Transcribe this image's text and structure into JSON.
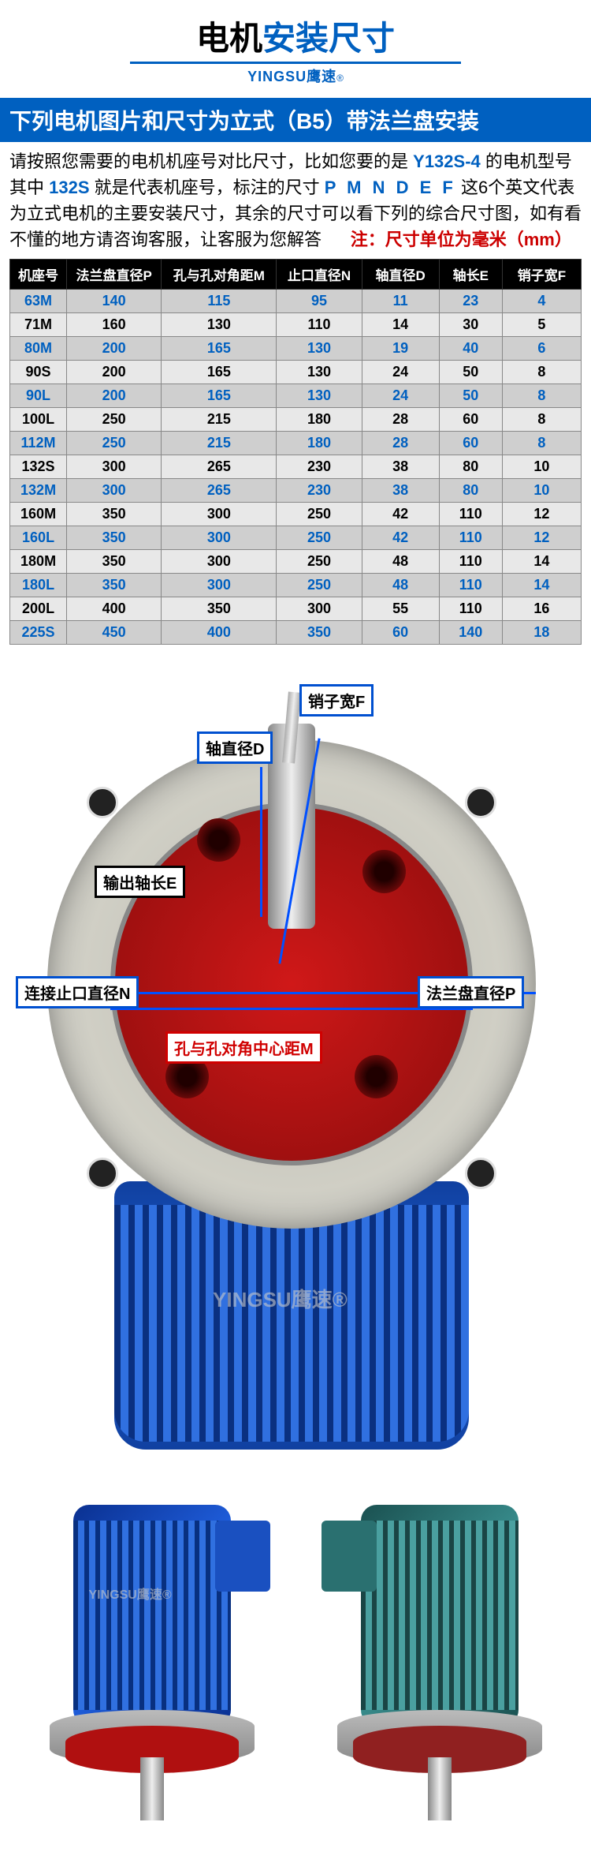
{
  "title": {
    "part1": "电机",
    "part2": "安装尺寸"
  },
  "brand": {
    "en": "YINGSU",
    "cn": "鹰速",
    "mark": "®"
  },
  "banner": "下列电机图片和尺寸为立式（B5）带法兰盘安装",
  "description": {
    "line1_a": "请按照您需要的电机机座号对比尺寸，比如您要的是",
    "line1_hl1": "Y132S-4",
    "line1_b": "的电机型号其中",
    "line1_hl2": "132S",
    "line1_c": "就是代表机座号，标注的尺寸",
    "line1_hl3": "P M N D E F",
    "line1_d": "这6个英文代表为立式电机的主要安装尺寸，其余的尺寸可以看下列的综合尺寸图，如有看不懂的地方请咨询客服，让客服为您解答",
    "note": "注：尺寸单位为毫米（mm）"
  },
  "table": {
    "columns": [
      "机座号",
      "法兰盘直径P",
      "孔与孔对角距M",
      "止口直径N",
      "轴直径D",
      "轴长E",
      "销子宽F"
    ],
    "col_widths": [
      "72px",
      "120px",
      "146px",
      "108px",
      "98px",
      "80px",
      "100px"
    ],
    "rows": [
      {
        "cells": [
          "63M",
          "140",
          "115",
          "95",
          "11",
          "23",
          "4"
        ],
        "color": "blue"
      },
      {
        "cells": [
          "71M",
          "160",
          "130",
          "110",
          "14",
          "30",
          "5"
        ],
        "color": "black"
      },
      {
        "cells": [
          "80M",
          "200",
          "165",
          "130",
          "19",
          "40",
          "6"
        ],
        "color": "blue"
      },
      {
        "cells": [
          "90S",
          "200",
          "165",
          "130",
          "24",
          "50",
          "8"
        ],
        "color": "black"
      },
      {
        "cells": [
          "90L",
          "200",
          "165",
          "130",
          "24",
          "50",
          "8"
        ],
        "color": "blue"
      },
      {
        "cells": [
          "100L",
          "250",
          "215",
          "180",
          "28",
          "60",
          "8"
        ],
        "color": "black"
      },
      {
        "cells": [
          "112M",
          "250",
          "215",
          "180",
          "28",
          "60",
          "8"
        ],
        "color": "blue"
      },
      {
        "cells": [
          "132S",
          "300",
          "265",
          "230",
          "38",
          "80",
          "10"
        ],
        "color": "black"
      },
      {
        "cells": [
          "132M",
          "300",
          "265",
          "230",
          "38",
          "80",
          "10"
        ],
        "color": "blue"
      },
      {
        "cells": [
          "160M",
          "350",
          "300",
          "250",
          "42",
          "110",
          "12"
        ],
        "color": "black"
      },
      {
        "cells": [
          "160L",
          "350",
          "300",
          "250",
          "42",
          "110",
          "12"
        ],
        "color": "blue"
      },
      {
        "cells": [
          "180M",
          "350",
          "300",
          "250",
          "48",
          "110",
          "14"
        ],
        "color": "black"
      },
      {
        "cells": [
          "180L",
          "350",
          "300",
          "250",
          "48",
          "110",
          "14"
        ],
        "color": "blue"
      },
      {
        "cells": [
          "200L",
          "400",
          "350",
          "300",
          "55",
          "110",
          "16"
        ],
        "color": "black"
      },
      {
        "cells": [
          "225S",
          "450",
          "400",
          "350",
          "60",
          "140",
          "18"
        ],
        "color": "blue"
      }
    ],
    "watermark": "YINGSU鹰速"
  },
  "diagram_labels": {
    "F": "销子宽F",
    "D": "轴直径D",
    "E": "输出轴长E",
    "N": "连接止口直径N",
    "P": "法兰盘直径P",
    "M": "孔与孔对角中心距M"
  },
  "colors": {
    "primary_blue": "#0060c0",
    "arrow_blue": "#0050ff",
    "flange_red": "#b01010",
    "motor_blue": "#1a50c0",
    "motor_teal": "#2a7070",
    "note_red": "#cc0000"
  },
  "watermark_text": "YINGSU鹰速®"
}
